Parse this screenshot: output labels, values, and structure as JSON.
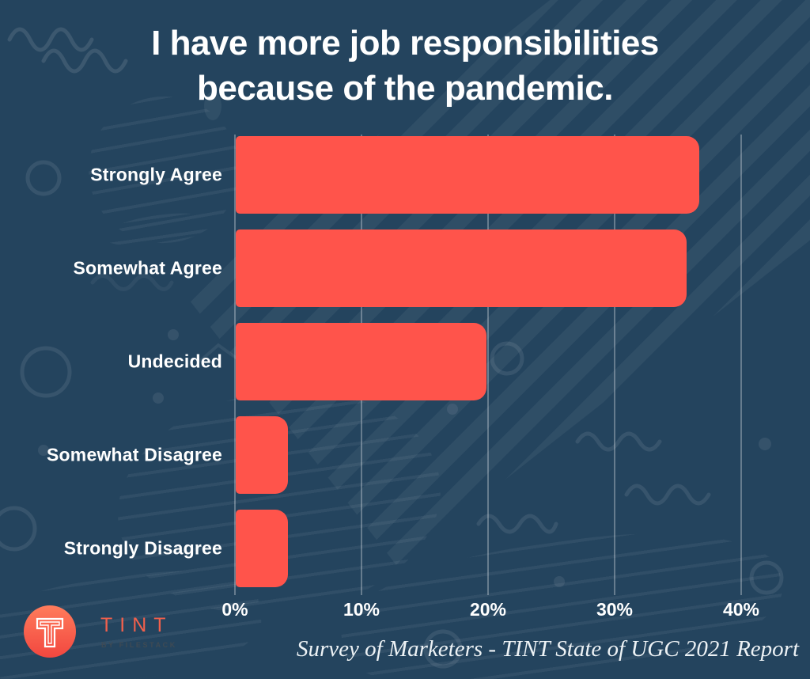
{
  "title": {
    "line1": "I have more job responsibilities",
    "line2": "because of the pandemic."
  },
  "chart_data": {
    "type": "bar",
    "orientation": "horizontal",
    "title": "I have more job responsibilities because of the pandemic.",
    "categories": [
      "Strongly Agree",
      "Somewhat Agree",
      "Undecided",
      "Somewhat Disagree",
      "Strongly Disagree"
    ],
    "values": [
      36.6,
      35.6,
      19.8,
      4.1,
      4.1
    ],
    "unit": "percent",
    "x_ticks": [
      "0%",
      "10%",
      "20%",
      "30%",
      "40%"
    ],
    "x_tick_values": [
      0,
      10,
      20,
      30,
      40
    ],
    "xlim": [
      0,
      40
    ],
    "grid": true,
    "legend": false,
    "bar_color": "#FF544B"
  },
  "caption": "Survey of Marketers - TINT State of UGC 2021 Report",
  "logo": {
    "brand": "TINT",
    "subtitle": "BY FILESTACK",
    "icon": "tint-t-icon"
  },
  "colors": {
    "background": "#24445E",
    "bar": "#FF544B",
    "text": "#FFFFFF",
    "brand_accent": "#F2604C",
    "gridline": "rgba(255,255,255,0.30)"
  }
}
